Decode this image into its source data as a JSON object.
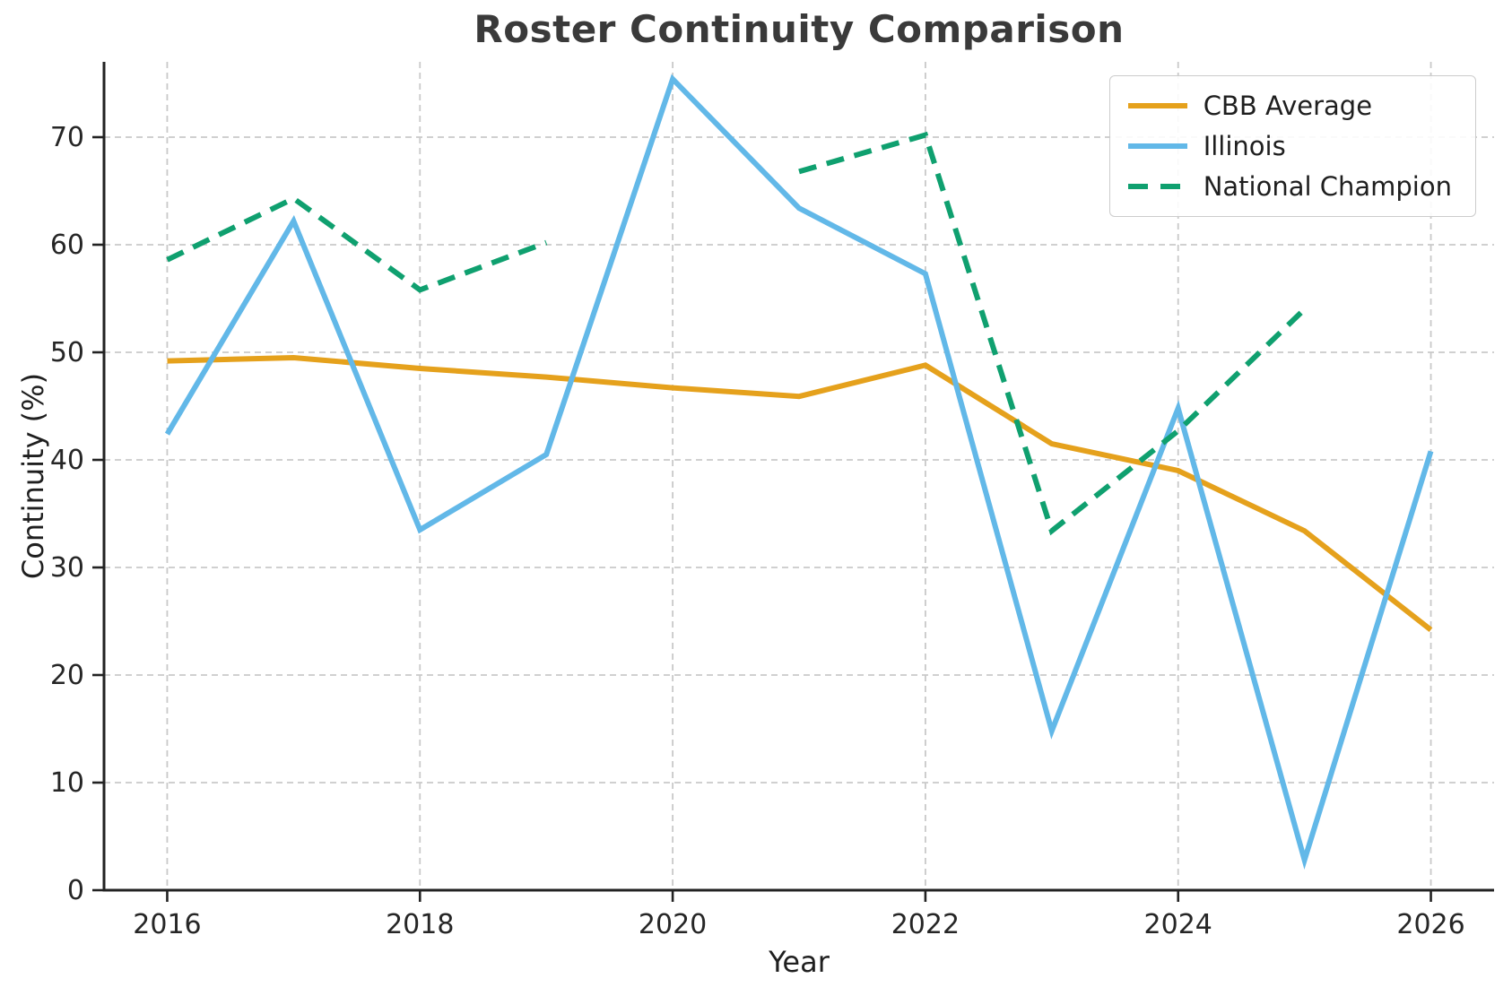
{
  "figure": {
    "title": "Roster Continuity Comparison",
    "xlabel": "Year",
    "ylabel": "Continuity (%)"
  },
  "chart_data": {
    "type": "line",
    "title": "Roster Continuity Comparison",
    "xlabel": "Year",
    "ylabel": "Continuity (%)",
    "x": [
      2016,
      2017,
      2018,
      2019,
      2020,
      2021,
      2022,
      2023,
      2024,
      2025,
      2026
    ],
    "series": [
      {
        "name": "CBB Average",
        "color": "#E5A11C",
        "dash": "solid",
        "values": [
          49.2,
          49.5,
          48.5,
          47.7,
          46.7,
          45.9,
          48.8,
          41.5,
          39.0,
          33.4,
          24.2
        ]
      },
      {
        "name": "Illinois",
        "color": "#62B8E8",
        "dash": "solid",
        "values": [
          42.4,
          62.2,
          33.5,
          40.5,
          75.4,
          63.4,
          57.3,
          14.8,
          44.8,
          2.8,
          40.8
        ]
      },
      {
        "name": "National Champion",
        "color": "#0FA06F",
        "dash": "dashed",
        "values": [
          58.6,
          64.3,
          55.8,
          60.2,
          null,
          66.8,
          70.2,
          33.4,
          42.7,
          54.0,
          null
        ]
      }
    ],
    "xticks": [
      2016,
      2018,
      2020,
      2022,
      2024,
      2026
    ],
    "yticks": [
      0,
      10,
      20,
      30,
      40,
      50,
      60,
      70
    ],
    "xlim": [
      2015.5,
      2026.5
    ],
    "ylim": [
      0,
      77
    ],
    "grid": true,
    "grid_style": "dashed",
    "legend_position": "upper right",
    "legend_entries": [
      "CBB Average",
      "Illinois",
      "National Champion"
    ]
  },
  "style": {
    "grid_color": "#c9c9c9",
    "spine_color": "#222222",
    "tick_label_color": "#262626",
    "background": "#ffffff"
  }
}
